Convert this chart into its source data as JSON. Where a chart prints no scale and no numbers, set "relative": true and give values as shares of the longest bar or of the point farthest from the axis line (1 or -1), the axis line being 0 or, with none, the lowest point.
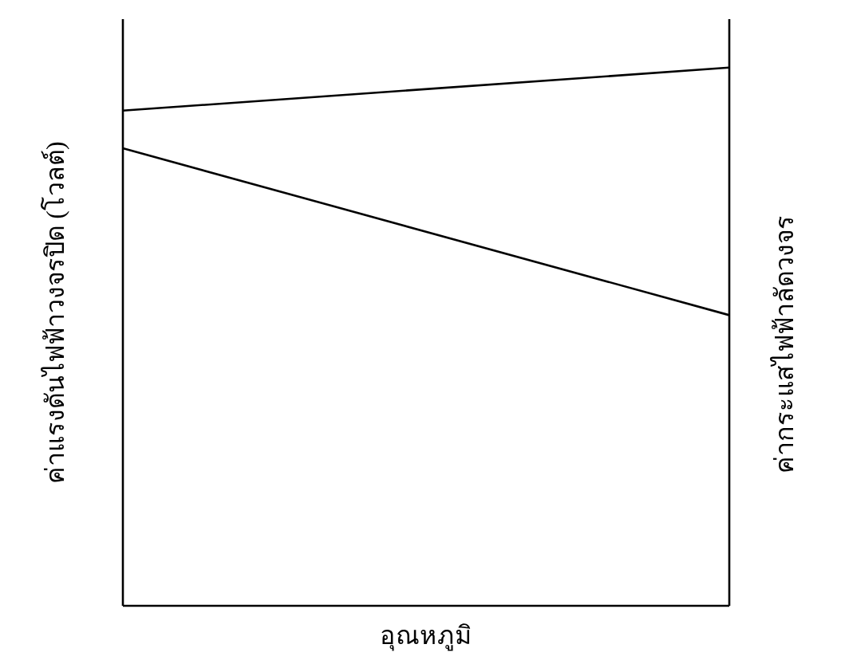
{
  "chart_data": {
    "type": "line",
    "relative": true,
    "xlabel": "อุณหภูมิ",
    "ylabel": "ค่าแรงดันไฟฟ้าวงจรปิด (โวลต์)",
    "y2label": "ค่ากระแสไฟฟ้าลัดวงจร",
    "categories": [
      null,
      null
    ],
    "marker": "none",
    "line_style": "solid",
    "series": [
      {
        "color": "#000000",
        "values": [
          0.92,
          1
        ]
      },
      {
        "color": "#000000",
        "values": [
          0.85,
          0.54
        ]
      }
    ]
  }
}
